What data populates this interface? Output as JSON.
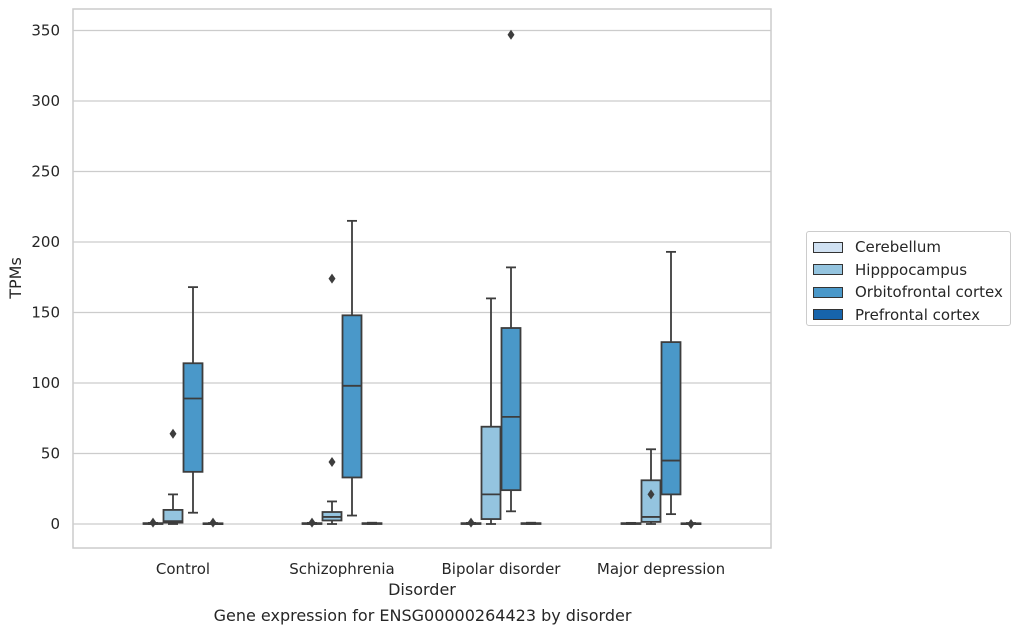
{
  "chart_data": {
    "type": "box",
    "caption": "Gene expression for ENSG00000264423 by disorder",
    "xlabel": "Disorder",
    "ylabel": "TPMs",
    "categories": [
      "Control",
      "Schizophrenia",
      "Bipolar disorder",
      "Major depression"
    ],
    "ylim": [
      -17,
      365
    ],
    "yticks": [
      0,
      50,
      100,
      150,
      200,
      250,
      300,
      350
    ],
    "grid": "horizontal",
    "legend_position": "right",
    "series": [
      {
        "name": "Cerebellum",
        "color": "#d0e1f2",
        "boxes": [
          {
            "q1": 0,
            "median": 0.2,
            "q3": 0.6,
            "whislo": 0,
            "whishi": 0.8,
            "fliers": [
              1
            ]
          },
          {
            "q1": 0,
            "median": 0.2,
            "q3": 0.6,
            "whislo": 0,
            "whishi": 0.8,
            "fliers": [
              1
            ]
          },
          {
            "q1": 0,
            "median": 0.2,
            "q3": 0.6,
            "whislo": 0,
            "whishi": 0.8,
            "fliers": [
              1
            ]
          },
          {
            "q1": 0,
            "median": 0.2,
            "q3": 0.6,
            "whislo": 0,
            "whishi": 0.8,
            "fliers": []
          }
        ]
      },
      {
        "name": "Hipppocampus",
        "color": "#94c4df",
        "boxes": [
          {
            "q1": 1,
            "median": 2,
            "q3": 10,
            "whislo": 0,
            "whishi": 21,
            "fliers": [
              64
            ]
          },
          {
            "q1": 2.5,
            "median": 5,
            "q3": 8.5,
            "whislo": 0,
            "whishi": 16,
            "fliers": [
              44,
              174
            ]
          },
          {
            "q1": 3.5,
            "median": 21,
            "q3": 69,
            "whislo": 0,
            "whishi": 160,
            "fliers": []
          },
          {
            "q1": 1.5,
            "median": 5,
            "q3": 31,
            "whislo": 0,
            "whishi": 53,
            "fliers": [
              21
            ]
          }
        ]
      },
      {
        "name": "Orbitofrontal cortex",
        "color": "#4a98c9",
        "boxes": [
          {
            "q1": 37,
            "median": 89,
            "q3": 114,
            "whislo": 8,
            "whishi": 168,
            "fliers": []
          },
          {
            "q1": 33,
            "median": 98,
            "q3": 148,
            "whislo": 6,
            "whishi": 215,
            "fliers": []
          },
          {
            "q1": 24,
            "median": 76,
            "q3": 139,
            "whislo": 9,
            "whishi": 182,
            "fliers": [
              347
            ]
          },
          {
            "q1": 21,
            "median": 45,
            "q3": 129,
            "whislo": 7,
            "whishi": 193,
            "fliers": []
          }
        ]
      },
      {
        "name": "Prefrontal cortex",
        "color": "#1764ab",
        "boxes": [
          {
            "q1": 0,
            "median": 0.2,
            "q3": 0.5,
            "whislo": 0,
            "whishi": 0.7,
            "fliers": [
              1
            ]
          },
          {
            "q1": 0,
            "median": 0.3,
            "q3": 0.6,
            "whislo": 0,
            "whishi": 0.9,
            "fliers": []
          },
          {
            "q1": 0,
            "median": 0.3,
            "q3": 0.6,
            "whislo": 0,
            "whishi": 0.9,
            "fliers": []
          },
          {
            "q1": 0,
            "median": 0.2,
            "q3": 0.5,
            "whislo": 0,
            "whishi": 0.7,
            "fliers": [
              0
            ]
          }
        ]
      }
    ]
  }
}
